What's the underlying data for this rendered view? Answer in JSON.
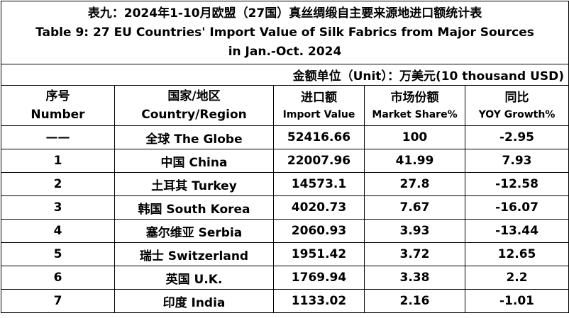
{
  "title": {
    "line_cn": "表九：2024年1-10月欧盟（27国）真丝绸缎自主要来源地进口额统计表",
    "line_en1": "Table 9: 27 EU Countries' Import Value of Silk Fabrics from Major Sources",
    "line_en2": "in Jan.-Oct. 2024"
  },
  "unit": "金额单位（Unit）：万美元(10 thousand USD)",
  "headers": [
    {
      "cn": "序号",
      "en": "Number"
    },
    {
      "cn": "国家/地区",
      "en": "Country/Region"
    },
    {
      "cn": "进口额",
      "en": "Import Value"
    },
    {
      "cn": "市场份额",
      "en": "Market Share%"
    },
    {
      "cn": "同比",
      "en": "YOY Growth%"
    }
  ],
  "rows": [
    {
      "no": "——",
      "country": "全球 The Globe",
      "value": "52416.66",
      "share": "100",
      "yoy": "-2.95"
    },
    {
      "no": "1",
      "country": "中国 China",
      "value": "22007.96",
      "share": "41.99",
      "yoy": "7.93"
    },
    {
      "no": "2",
      "country": "土耳其 Turkey",
      "value": "14573.1",
      "share": "27.8",
      "yoy": "-12.58"
    },
    {
      "no": "3",
      "country": "韩国 South Korea",
      "value": "4020.73",
      "share": "7.67",
      "yoy": "-16.07"
    },
    {
      "no": "4",
      "country": "塞尔维亚 Serbia",
      "value": "2060.93",
      "share": "3.93",
      "yoy": "-13.44"
    },
    {
      "no": "5",
      "country": "瑞士 Switzerland",
      "value": "1951.42",
      "share": "3.72",
      "yoy": "12.65"
    },
    {
      "no": "6",
      "country": "英国 U.K.",
      "value": "1769.94",
      "share": "3.38",
      "yoy": "2.2"
    },
    {
      "no": "7",
      "country": "印度 India",
      "value": "1133.02",
      "share": "2.16",
      "yoy": "-1.01"
    }
  ]
}
